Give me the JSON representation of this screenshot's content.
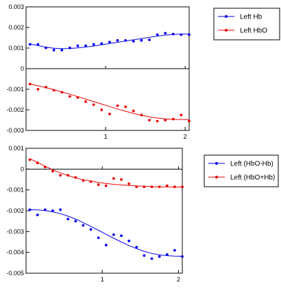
{
  "chart_data": [
    {
      "type": "scatter",
      "ylim": [
        -0.003,
        0.003
      ],
      "xlim": [
        0,
        2.05
      ],
      "yticks": [
        {
          "v": 0.003,
          "label": "0.003"
        },
        {
          "v": 0.002,
          "label": "0.002"
        },
        {
          "v": 0.001,
          "label": "0.001"
        },
        {
          "v": 0,
          "label": "0"
        },
        {
          "v": -0.001,
          "label": "-0.001"
        },
        {
          "v": -0.002,
          "label": "-0.002"
        },
        {
          "v": -0.003,
          "label": "-0.003"
        }
      ],
      "xticks": [
        {
          "v": 1,
          "label": "1"
        },
        {
          "v": 2,
          "label": "2"
        }
      ],
      "legend": "right",
      "series": [
        {
          "name": "Left Hb",
          "color": "#0000ee",
          "x": [
            0.05,
            0.15,
            0.25,
            0.35,
            0.45,
            0.55,
            0.65,
            0.75,
            0.85,
            0.95,
            1.05,
            1.15,
            1.25,
            1.35,
            1.45,
            1.55,
            1.65,
            1.75,
            1.85,
            1.95,
            2.05
          ],
          "y": [
            0.00118,
            0.00118,
            0.00101,
            0.0009,
            0.0009,
            0.00101,
            0.00111,
            0.00111,
            0.00118,
            0.00122,
            0.00129,
            0.00137,
            0.00137,
            0.00133,
            0.00137,
            0.0014,
            0.00165,
            0.00172,
            0.00168,
            0.00165,
            0.00165
          ],
          "fit": [
            0.0012,
            0.00112,
            0.00104,
            0.00099,
            0.00097,
            0.00098,
            0.00101,
            0.00105,
            0.0011,
            0.00116,
            0.00122,
            0.00128,
            0.00134,
            0.0014,
            0.00146,
            0.00152,
            0.00158,
            0.00163,
            0.00166,
            0.00168,
            0.00168
          ]
        },
        {
          "name": "Left HbO",
          "color": "#ee0000",
          "x": [
            0.05,
            0.15,
            0.25,
            0.35,
            0.45,
            0.55,
            0.65,
            0.75,
            0.85,
            0.95,
            1.05,
            1.15,
            1.25,
            1.35,
            1.45,
            1.55,
            1.65,
            1.75,
            1.85,
            1.95,
            2.05
          ],
          "y": [
            -0.00075,
            -0.001,
            -0.0009,
            -0.00105,
            -0.00115,
            -0.00135,
            -0.0014,
            -0.0016,
            -0.00175,
            -0.002,
            -0.0022,
            -0.0018,
            -0.00185,
            -0.00205,
            -0.00225,
            -0.0025,
            -0.00255,
            -0.0025,
            -0.00245,
            -0.00225,
            -0.00255
          ],
          "fit": [
            -0.00075,
            -0.00083,
            -0.00092,
            -0.00102,
            -0.00113,
            -0.00124,
            -0.00136,
            -0.00148,
            -0.0016,
            -0.00172,
            -0.00184,
            -0.00196,
            -0.00207,
            -0.00217,
            -0.00226,
            -0.00234,
            -0.0024,
            -0.00244,
            -0.00246,
            -0.00247,
            -0.00248
          ]
        }
      ]
    },
    {
      "type": "scatter",
      "ylim": [
        -0.005,
        0.001
      ],
      "xlim": [
        0,
        2.05
      ],
      "yticks": [
        {
          "v": 0.001,
          "label": "0.001"
        },
        {
          "v": 0,
          "label": "0"
        },
        {
          "v": -0.001,
          "label": "-0.001"
        },
        {
          "v": -0.002,
          "label": "-0.002"
        },
        {
          "v": -0.003,
          "label": "-0.003"
        },
        {
          "v": -0.004,
          "label": "-0.004"
        },
        {
          "v": -0.005,
          "label": "-0.005"
        }
      ],
      "xticks": [
        {
          "v": 1,
          "label": "1"
        },
        {
          "v": 2,
          "label": "2"
        }
      ],
      "legend": "right",
      "series": [
        {
          "name": "Left (HbO-Hb)",
          "color": "#0000ee",
          "x": [
            0.05,
            0.15,
            0.25,
            0.35,
            0.45,
            0.55,
            0.65,
            0.75,
            0.85,
            0.95,
            1.05,
            1.15,
            1.25,
            1.35,
            1.45,
            1.55,
            1.65,
            1.75,
            1.85,
            1.95,
            2.05
          ],
          "y": [
            -0.00195,
            -0.0022,
            -0.00195,
            -0.002,
            -0.00195,
            -0.0024,
            -0.0025,
            -0.0027,
            -0.0029,
            -0.0033,
            -0.00365,
            -0.00315,
            -0.0032,
            -0.00345,
            -0.00375,
            -0.00415,
            -0.0043,
            -0.0042,
            -0.0041,
            -0.0039,
            -0.0042
          ],
          "fit": [
            -0.00195,
            -0.00196,
            -0.00199,
            -0.00205,
            -0.00214,
            -0.00226,
            -0.0024,
            -0.00257,
            -0.00275,
            -0.00294,
            -0.00313,
            -0.00332,
            -0.0035,
            -0.00367,
            -0.00382,
            -0.00395,
            -0.00405,
            -0.00412,
            -0.00416,
            -0.00418,
            -0.00419
          ]
        },
        {
          "name": "Left (HbO+Hb)",
          "color": "#ee0000",
          "x": [
            0.05,
            0.15,
            0.25,
            0.35,
            0.45,
            0.55,
            0.65,
            0.75,
            0.85,
            0.95,
            1.05,
            1.15,
            1.25,
            1.35,
            1.45,
            1.55,
            1.65,
            1.75,
            1.85,
            1.95,
            2.05
          ],
          "y": [
            0.00045,
            0.0003,
            0.0001,
            -0.0001,
            -0.0003,
            -0.0003,
            -0.0004,
            -0.00055,
            -0.0006,
            -0.00075,
            -0.0008,
            -0.00045,
            -0.0005,
            -0.0007,
            -0.00085,
            -0.00085,
            -0.00085,
            -0.00085,
            -0.0008,
            -0.00085,
            -0.00085
          ],
          "fit": [
            0.0005,
            0.00032,
            0.00014,
            -3e-05,
            -0.00018,
            -0.00031,
            -0.00042,
            -0.00051,
            -0.00058,
            -0.00064,
            -0.00069,
            -0.00073,
            -0.00076,
            -0.00079,
            -0.00081,
            -0.00083,
            -0.00084,
            -0.00085,
            -0.00086,
            -0.00086,
            -0.00087
          ]
        }
      ]
    }
  ]
}
